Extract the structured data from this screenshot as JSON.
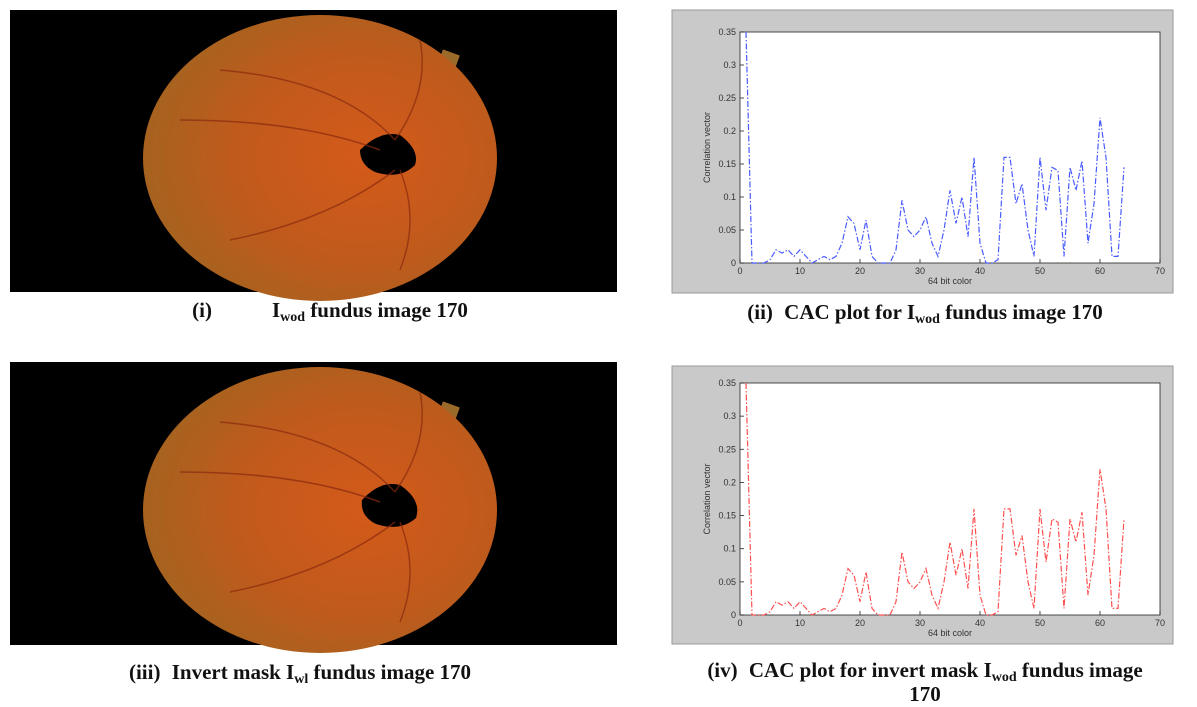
{
  "chart_data": [
    {
      "type": "line",
      "xlabel": "64 bit color",
      "ylabel": "Correlation vector",
      "x": [
        1,
        2,
        3,
        4,
        5,
        6,
        7,
        8,
        9,
        10,
        11,
        12,
        13,
        14,
        15,
        16,
        17,
        18,
        19,
        20,
        21,
        22,
        23,
        24,
        25,
        26,
        27,
        28,
        29,
        30,
        31,
        32,
        33,
        34,
        35,
        36,
        37,
        38,
        39,
        40,
        41,
        42,
        43,
        44,
        45,
        46,
        47,
        48,
        49,
        50,
        51,
        52,
        53,
        54,
        55,
        56,
        57,
        58,
        59,
        60,
        61,
        62,
        63,
        64
      ],
      "series": [
        {
          "color": "#4a5cff",
          "values": [
            0.35,
            0,
            0,
            0,
            0.005,
            0.02,
            0.015,
            0.02,
            0.01,
            0.02,
            0.01,
            0,
            0.005,
            0.01,
            0.005,
            0.01,
            0.03,
            0.07,
            0.06,
            0.02,
            0.065,
            0.01,
            0,
            0,
            0,
            0.02,
            0.095,
            0.05,
            0.04,
            0.05,
            0.07,
            0.03,
            0.01,
            0.05,
            0.11,
            0.06,
            0.1,
            0.04,
            0.16,
            0.03,
            0,
            0,
            0.005,
            0.16,
            0.16,
            0.09,
            0.12,
            0.05,
            0.01,
            0.16,
            0.08,
            0.145,
            0.14,
            0.01,
            0.145,
            0.11,
            0.155,
            0.03,
            0.09,
            0.22,
            0.16,
            0.01,
            0.01,
            0.145
          ]
        }
      ],
      "xlim": [
        0,
        70
      ],
      "xticks": [
        0,
        10,
        20,
        30,
        40,
        50,
        60,
        70
      ],
      "ylim": [
        0,
        0.35
      ],
      "yticks": [
        0,
        0.05,
        0.1,
        0.15,
        0.2,
        0.25,
        0.3,
        0.35
      ]
    },
    {
      "type": "line",
      "xlabel": "64 bit color",
      "ylabel": "Correlation vector",
      "x": [
        1,
        2,
        3,
        4,
        5,
        6,
        7,
        8,
        9,
        10,
        11,
        12,
        13,
        14,
        15,
        16,
        17,
        18,
        19,
        20,
        21,
        22,
        23,
        24,
        25,
        26,
        27,
        28,
        29,
        30,
        31,
        32,
        33,
        34,
        35,
        36,
        37,
        38,
        39,
        40,
        41,
        42,
        43,
        44,
        45,
        46,
        47,
        48,
        49,
        50,
        51,
        52,
        53,
        54,
        55,
        56,
        57,
        58,
        59,
        60,
        61,
        62,
        63,
        64
      ],
      "series": [
        {
          "color": "#ff5050",
          "values": [
            0.35,
            0,
            0,
            0,
            0.005,
            0.02,
            0.015,
            0.02,
            0.01,
            0.02,
            0.01,
            0,
            0.005,
            0.01,
            0.005,
            0.01,
            0.03,
            0.07,
            0.06,
            0.02,
            0.065,
            0.01,
            0,
            0,
            0,
            0.02,
            0.095,
            0.05,
            0.04,
            0.05,
            0.07,
            0.03,
            0.01,
            0.05,
            0.11,
            0.06,
            0.1,
            0.04,
            0.16,
            0.03,
            0,
            0,
            0.005,
            0.16,
            0.16,
            0.09,
            0.12,
            0.05,
            0.01,
            0.16,
            0.08,
            0.145,
            0.14,
            0.01,
            0.145,
            0.11,
            0.155,
            0.03,
            0.09,
            0.22,
            0.16,
            0.01,
            0.01,
            0.145
          ]
        }
      ],
      "xlim": [
        0,
        70
      ],
      "xticks": [
        0,
        10,
        20,
        30,
        40,
        50,
        60,
        70
      ],
      "ylim": [
        0,
        0.35
      ],
      "yticks": [
        0,
        0.05,
        0.1,
        0.15,
        0.2,
        0.25,
        0.3,
        0.35
      ]
    }
  ],
  "captions": [
    {
      "label": "(i)",
      "text": "I",
      "subscript": "wod",
      "rest": "fundus image 170"
    },
    {
      "label": "(ii)",
      "text": "CAC plot for I",
      "subscript": "wod",
      "rest": "fundus image 170"
    },
    {
      "label": "(iii)",
      "text": "Invert mask I",
      "subscript": "wl",
      "rest": "fundus image 170"
    },
    {
      "label": "(iv)",
      "text": "CAC plot for invert mask I",
      "subscript": "wod",
      "rest": "fundus image 170"
    }
  ]
}
